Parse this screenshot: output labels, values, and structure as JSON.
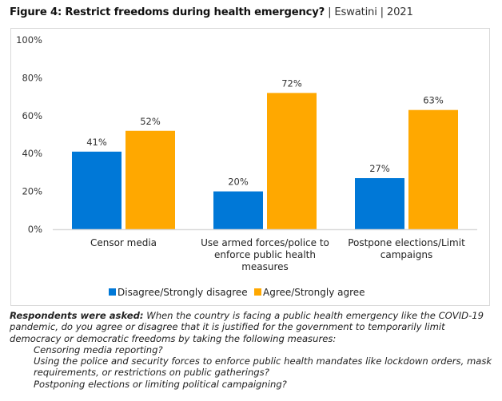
{
  "title": {
    "bold": "Figure 4: Restrict freedoms during health emergency?",
    "sub": " | Eswatini | 2021"
  },
  "chart_data": {
    "type": "bar",
    "title": "Figure 4: Restrict freedoms during health emergency? | Eswatini | 2021",
    "categories": [
      [
        "Censor media"
      ],
      [
        "Use armed forces/police to",
        "enforce public health",
        "measures"
      ],
      [
        "Postpone elections/Limit",
        "campaigns"
      ]
    ],
    "series": [
      {
        "name": "Disagree/Strongly disagree",
        "color": "#0078d7",
        "values": [
          41,
          20,
          27
        ]
      },
      {
        "name": "Agree/Strongly agree",
        "color": "#ffa800",
        "values": [
          52,
          72,
          63
        ]
      }
    ],
    "yticks": [
      0,
      20,
      40,
      60,
      80,
      100
    ],
    "ylim": [
      0,
      100
    ],
    "value_suffix": "%",
    "xlabel": "",
    "ylabel": "",
    "grid": false,
    "legend_position": "bottom"
  },
  "note": {
    "lead": "Respondents were asked:",
    "text": " When the country is facing a public health emergency like the COVID-19 pandemic, do you agree or disagree that it is justified for the government to temporarily limit democracy or democratic freedoms by taking the following measures:",
    "items": [
      "Censoring media reporting?",
      "Using the police and security forces to enforce public health mandates like lockdown orders, mask requirements, or restrictions on public gatherings?",
      "Postponing elections or limiting political campaigning?"
    ]
  }
}
